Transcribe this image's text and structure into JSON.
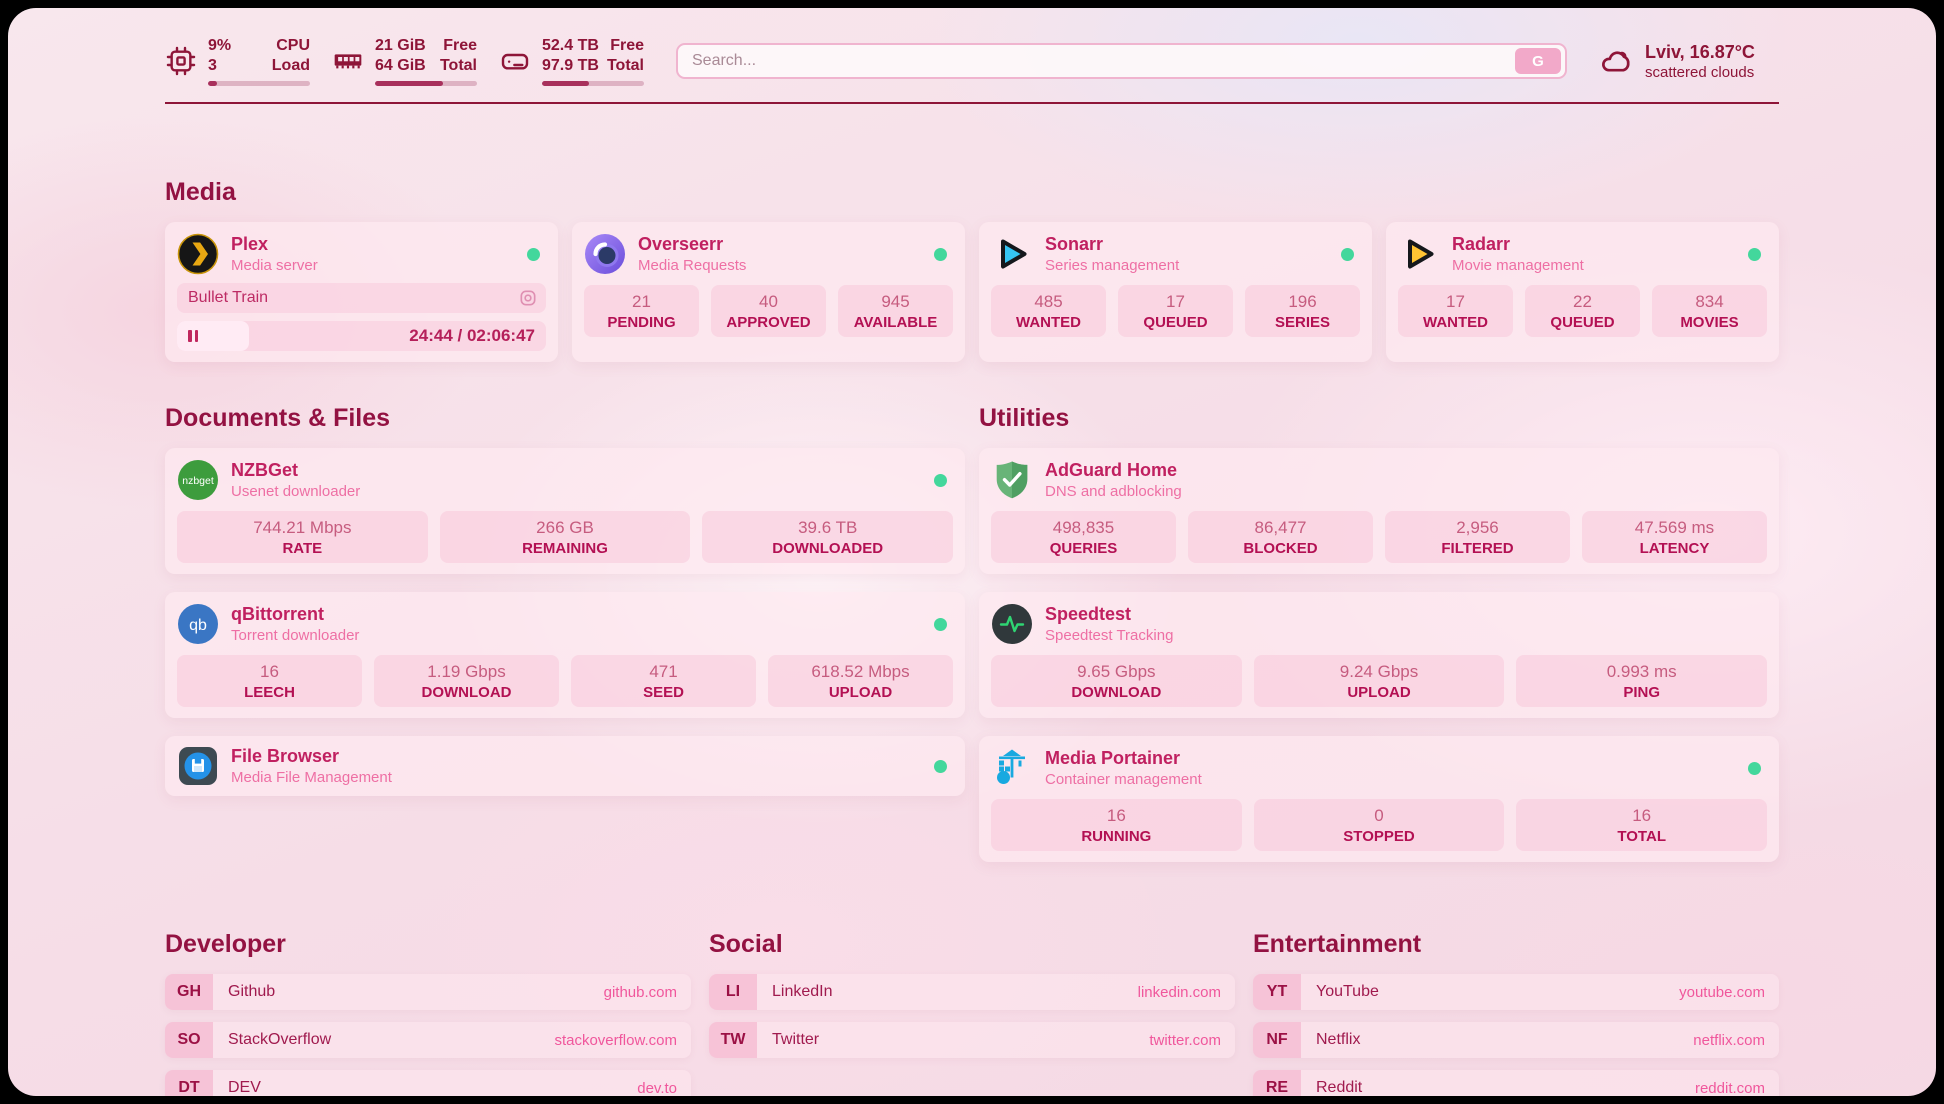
{
  "header": {
    "cpu": {
      "icon": "cpu-icon",
      "value_top": "9%",
      "value_bottom": "3",
      "label_top": "CPU",
      "label_bottom": "Load",
      "usage_percent": 9
    },
    "memory": {
      "icon": "memory-icon",
      "value_top": "21 GiB",
      "value_bottom": "64 GiB",
      "label_top": "Free",
      "label_bottom": "Total",
      "usage_percent": 67
    },
    "disk": {
      "icon": "disk-icon",
      "value_top": "52.4 TB",
      "value_bottom": "97.9 TB",
      "label_top": "Free",
      "label_bottom": "Total",
      "usage_percent": 46
    },
    "search": {
      "placeholder": "Search...",
      "button": "G"
    },
    "weather": {
      "icon": "cloud-icon",
      "location_temp": "Lviv, 16.87°C",
      "condition": "scattered clouds"
    }
  },
  "sections": {
    "media": {
      "title": "Media",
      "plex": {
        "name": "Plex",
        "description": "Media server",
        "icon": "plex-icon",
        "status_online": true,
        "now_playing": "Bullet Train",
        "time_display": "24:44 / 02:06:47",
        "elapsed": "24:44",
        "duration": "02:06:47",
        "progress_percent": 19.6
      },
      "overseerr": {
        "name": "Overseerr",
        "description": "Media Requests",
        "icon": "overseerr-icon",
        "status_online": true,
        "stats": [
          {
            "value": "21",
            "label": "PENDING"
          },
          {
            "value": "40",
            "label": "APPROVED"
          },
          {
            "value": "945",
            "label": "AVAILABLE"
          }
        ]
      },
      "sonarr": {
        "name": "Sonarr",
        "description": "Series management",
        "icon": "sonarr-icon",
        "status_online": true,
        "stats": [
          {
            "value": "485",
            "label": "WANTED"
          },
          {
            "value": "17",
            "label": "QUEUED"
          },
          {
            "value": "196",
            "label": "SERIES"
          }
        ]
      },
      "radarr": {
        "name": "Radarr",
        "description": "Movie management",
        "icon": "radarr-icon",
        "status_online": true,
        "stats": [
          {
            "value": "17",
            "label": "WANTED"
          },
          {
            "value": "22",
            "label": "QUEUED"
          },
          {
            "value": "834",
            "label": "MOVIES"
          }
        ]
      }
    },
    "documents": {
      "title": "Documents & Files",
      "nzbget": {
        "name": "NZBGet",
        "description": "Usenet downloader",
        "icon": "nzbget-icon",
        "status_online": true,
        "stats": [
          {
            "value": "744.21 Mbps",
            "label": "RATE"
          },
          {
            "value": "266 GB",
            "label": "REMAINING"
          },
          {
            "value": "39.6 TB",
            "label": "DOWNLOADED"
          }
        ]
      },
      "qbittorrent": {
        "name": "qBittorrent",
        "description": "Torrent downloader",
        "icon": "qbittorrent-icon",
        "status_online": true,
        "stats": [
          {
            "value": "16",
            "label": "LEECH"
          },
          {
            "value": "1.19 Gbps",
            "label": "DOWNLOAD"
          },
          {
            "value": "471",
            "label": "SEED"
          },
          {
            "value": "618.52 Mbps",
            "label": "UPLOAD"
          }
        ]
      },
      "filebrowser": {
        "name": "File Browser",
        "description": "Media File Management",
        "icon": "filebrowser-icon",
        "status_online": true
      }
    },
    "utilities": {
      "title": "Utilities",
      "adguard": {
        "name": "AdGuard Home",
        "description": "DNS and adblocking",
        "icon": "adguard-icon",
        "stats": [
          {
            "value": "498,835",
            "label": "QUERIES"
          },
          {
            "value": "86,477",
            "label": "BLOCKED"
          },
          {
            "value": "2,956",
            "label": "FILTERED"
          },
          {
            "value": "47.569 ms",
            "label": "LATENCY"
          }
        ]
      },
      "speedtest": {
        "name": "Speedtest",
        "description": "Speedtest Tracking",
        "icon": "speedtest-icon",
        "stats": [
          {
            "value": "9.65 Gbps",
            "label": "DOWNLOAD"
          },
          {
            "value": "9.24 Gbps",
            "label": "UPLOAD"
          },
          {
            "value": "0.993 ms",
            "label": "PING"
          }
        ]
      },
      "portainer": {
        "name": "Media Portainer",
        "description": "Container management",
        "icon": "portainer-icon",
        "status_online": true,
        "stats": [
          {
            "value": "16",
            "label": "RUNNING"
          },
          {
            "value": "0",
            "label": "STOPPED"
          },
          {
            "value": "16",
            "label": "TOTAL"
          }
        ]
      }
    }
  },
  "bookmark_groups": [
    {
      "title": "Developer",
      "items": [
        {
          "abbr": "GH",
          "name": "Github",
          "url": "github.com"
        },
        {
          "abbr": "SO",
          "name": "StackOverflow",
          "url": "stackoverflow.com"
        },
        {
          "abbr": "DT",
          "name": "DEV",
          "url": "dev.to"
        }
      ]
    },
    {
      "title": "Social",
      "items": [
        {
          "abbr": "LI",
          "name": "LinkedIn",
          "url": "linkedin.com"
        },
        {
          "abbr": "TW",
          "name": "Twitter",
          "url": "twitter.com"
        }
      ]
    },
    {
      "title": "Entertainment",
      "items": [
        {
          "abbr": "YT",
          "name": "YouTube",
          "url": "youtube.com"
        },
        {
          "abbr": "NF",
          "name": "Netflix",
          "url": "netflix.com"
        },
        {
          "abbr": "RE",
          "name": "Reddit",
          "url": "reddit.com"
        }
      ]
    }
  ],
  "colors": {
    "accent_dark": "#8e1538",
    "accent": "#b31053",
    "service_title": "#c02060",
    "service_subtitle": "#ee6fa4",
    "status_online": "#43d79c",
    "card_bg": "#fde9f0",
    "stat_tile_bg": "#f8c9db",
    "search_button_bg": "#f2a9c9",
    "plex_brand": "#e8a812",
    "sonarr_brand": "#35c5f4",
    "radarr_brand": "#fec333",
    "nzbget_brand": "#3d9c3d",
    "qbittorrent_brand": "#3a76c4",
    "adguard_brand": "#5fae6f",
    "portainer_brand": "#18a9e0"
  }
}
